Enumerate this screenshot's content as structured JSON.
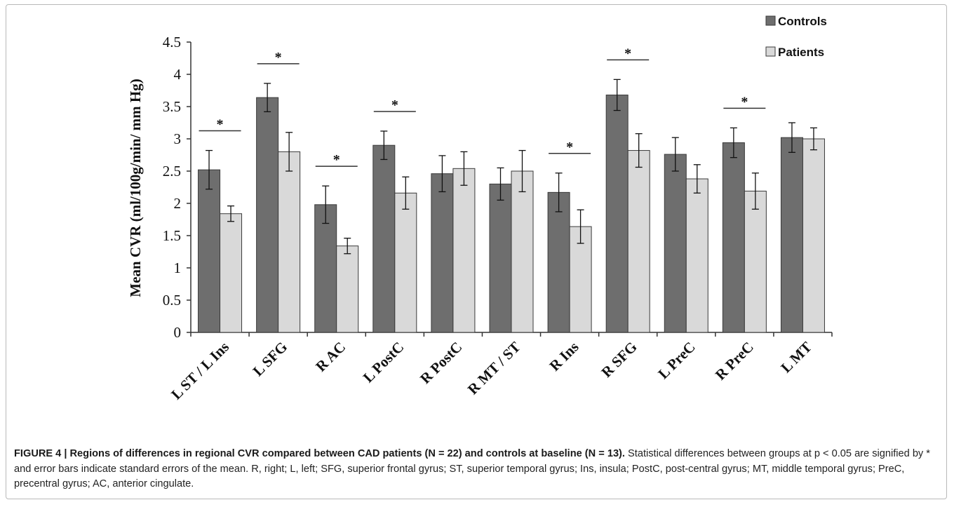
{
  "chart_data": {
    "type": "bar",
    "ylabel": "Mean CVR (ml/100g/min/ mm Hg)",
    "ylim": [
      0,
      4.5
    ],
    "yticks": [
      "0",
      "0.5",
      "1",
      "1.5",
      "2",
      "2.5",
      "3",
      "3.5",
      "4",
      "4.5"
    ],
    "grid": false,
    "legend_position": "top-right",
    "categories": [
      "L ST / L Ins",
      "L SFG",
      "R AC",
      "L PostC",
      "R PostC",
      "R MT / ST",
      "R Ins",
      "R SFG",
      "L PreC",
      "R PreC",
      "L MT"
    ],
    "series": [
      {
        "name": "Controls",
        "color": "#6e6e6e",
        "values": [
          2.52,
          3.64,
          1.98,
          2.9,
          2.46,
          2.3,
          2.17,
          3.68,
          2.76,
          2.94,
          3.02
        ],
        "errors": [
          0.3,
          0.22,
          0.29,
          0.22,
          0.28,
          0.25,
          0.3,
          0.24,
          0.26,
          0.23,
          0.23
        ]
      },
      {
        "name": "Patients",
        "color": "#d9d9d9",
        "values": [
          1.84,
          2.8,
          1.34,
          2.16,
          2.54,
          2.5,
          1.64,
          2.82,
          2.38,
          2.19,
          3.0
        ],
        "errors": [
          0.12,
          0.3,
          0.12,
          0.25,
          0.26,
          0.32,
          0.26,
          0.26,
          0.22,
          0.28,
          0.17
        ]
      }
    ],
    "significance_marker": "*",
    "significant_categories": [
      0,
      1,
      2,
      3,
      6,
      7,
      9
    ]
  },
  "caption": {
    "title": "FIGURE 4 | Regions of differences in regional CVR compared between CAD patients (N = 22) and controls at baseline (N = 13).",
    "body": "Statistical differences between groups at p < 0.05 are signified by * and error bars indicate standard errors of the mean. R, right; L, left; SFG, superior frontal gyrus; ST, superior temporal gyrus; Ins, insula; PostC, post-central gyrus; MT, middle temporal gyrus; PreC, precentral gyrus; AC, anterior cingulate."
  }
}
